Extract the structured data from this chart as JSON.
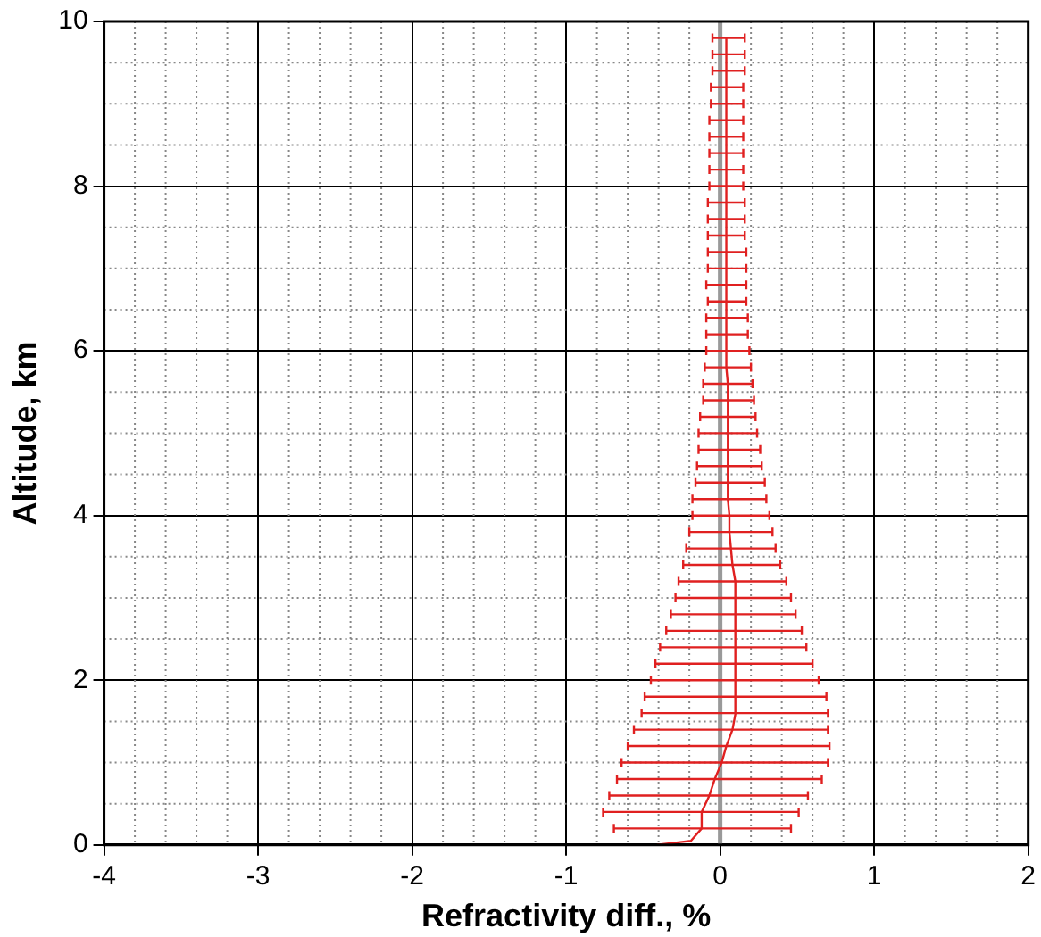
{
  "chart_data": {
    "type": "line",
    "xlabel": "Refractivity diff., %",
    "ylabel": "Altitude, km",
    "xlim": [
      -4,
      2
    ],
    "xticks": [
      -4,
      -3,
      -2,
      -1,
      0,
      1,
      2
    ],
    "ylim": [
      0,
      10
    ],
    "yticks": [
      0,
      2,
      4,
      6,
      8,
      10
    ],
    "grid": true,
    "legend": false,
    "marker": "none",
    "line_style": "solid",
    "ref_lines": [
      {
        "axis": "x",
        "value": 0,
        "color": "#999999"
      }
    ],
    "series": [
      {
        "color": "#e02020",
        "x": [
          -0.41,
          -0.19,
          -0.12,
          -0.12,
          -0.07,
          -0.035,
          0.01,
          0.04,
          0.08,
          0.1,
          0.1,
          0.1,
          0.1,
          0.1,
          0.1,
          0.1,
          0.1,
          0.09,
          0.08,
          0.07,
          0.06,
          0.06,
          0.05,
          0.05,
          0.05,
          0.05,
          0.05,
          0.05,
          0.05,
          0.05,
          0.04,
          0.04,
          0.04,
          0.04,
          0.04,
          0.04,
          0.04,
          0.04,
          0.04,
          0.04,
          0.04,
          0.04,
          0.04,
          0.04,
          0.04,
          0.04,
          0.04,
          0.04,
          0.04,
          0.04,
          0.04
        ],
        "values": [
          0,
          0.05,
          0.2,
          0.4,
          0.6,
          0.8,
          1.0,
          1.2,
          1.4,
          1.6,
          1.8,
          2.0,
          2.2,
          2.4,
          2.6,
          2.8,
          3.0,
          3.2,
          3.4,
          3.6,
          3.8,
          4.0,
          4.2,
          4.4,
          4.6,
          4.8,
          5.0,
          5.2,
          5.4,
          5.6,
          5.8,
          6.0,
          6.2,
          6.4,
          6.6,
          6.8,
          7.0,
          7.2,
          7.4,
          7.6,
          7.8,
          8.0,
          8.2,
          8.4,
          8.6,
          8.8,
          9.0,
          9.2,
          9.4,
          9.6,
          9.8
        ],
        "xerrors": [
          null,
          null,
          [
            -0.69,
            0.46
          ],
          [
            -0.76,
            0.51
          ],
          [
            -0.72,
            0.57
          ],
          [
            -0.67,
            0.66
          ],
          [
            -0.64,
            0.7
          ],
          [
            -0.6,
            0.71
          ],
          [
            -0.56,
            0.7
          ],
          [
            -0.51,
            0.7
          ],
          [
            -0.49,
            0.69
          ],
          [
            -0.45,
            0.64
          ],
          [
            -0.42,
            0.6
          ],
          [
            -0.39,
            0.56
          ],
          [
            -0.35,
            0.53
          ],
          [
            -0.32,
            0.49
          ],
          [
            -0.29,
            0.46
          ],
          [
            -0.27,
            0.43
          ],
          [
            -0.24,
            0.39
          ],
          [
            -0.22,
            0.36
          ],
          [
            -0.2,
            0.34
          ],
          [
            -0.18,
            0.32
          ],
          [
            -0.18,
            0.3
          ],
          [
            -0.16,
            0.29
          ],
          [
            -0.15,
            0.27
          ],
          [
            -0.14,
            0.26
          ],
          [
            -0.14,
            0.24
          ],
          [
            -0.13,
            0.23
          ],
          [
            -0.11,
            0.22
          ],
          [
            -0.11,
            0.21
          ],
          [
            -0.1,
            0.2
          ],
          [
            -0.09,
            0.19
          ],
          [
            -0.09,
            0.18
          ],
          [
            -0.09,
            0.18
          ],
          [
            -0.08,
            0.17
          ],
          [
            -0.09,
            0.17
          ],
          [
            -0.08,
            0.17
          ],
          [
            -0.08,
            0.17
          ],
          [
            -0.08,
            0.16
          ],
          [
            -0.08,
            0.16
          ],
          [
            -0.08,
            0.16
          ],
          [
            -0.07,
            0.15
          ],
          [
            -0.07,
            0.15
          ],
          [
            -0.07,
            0.15
          ],
          [
            -0.07,
            0.15
          ],
          [
            -0.07,
            0.15
          ],
          [
            -0.06,
            0.15
          ],
          [
            -0.06,
            0.15
          ],
          [
            -0.05,
            0.16
          ],
          [
            -0.05,
            0.16
          ],
          [
            -0.05,
            0.16
          ]
        ]
      }
    ]
  }
}
